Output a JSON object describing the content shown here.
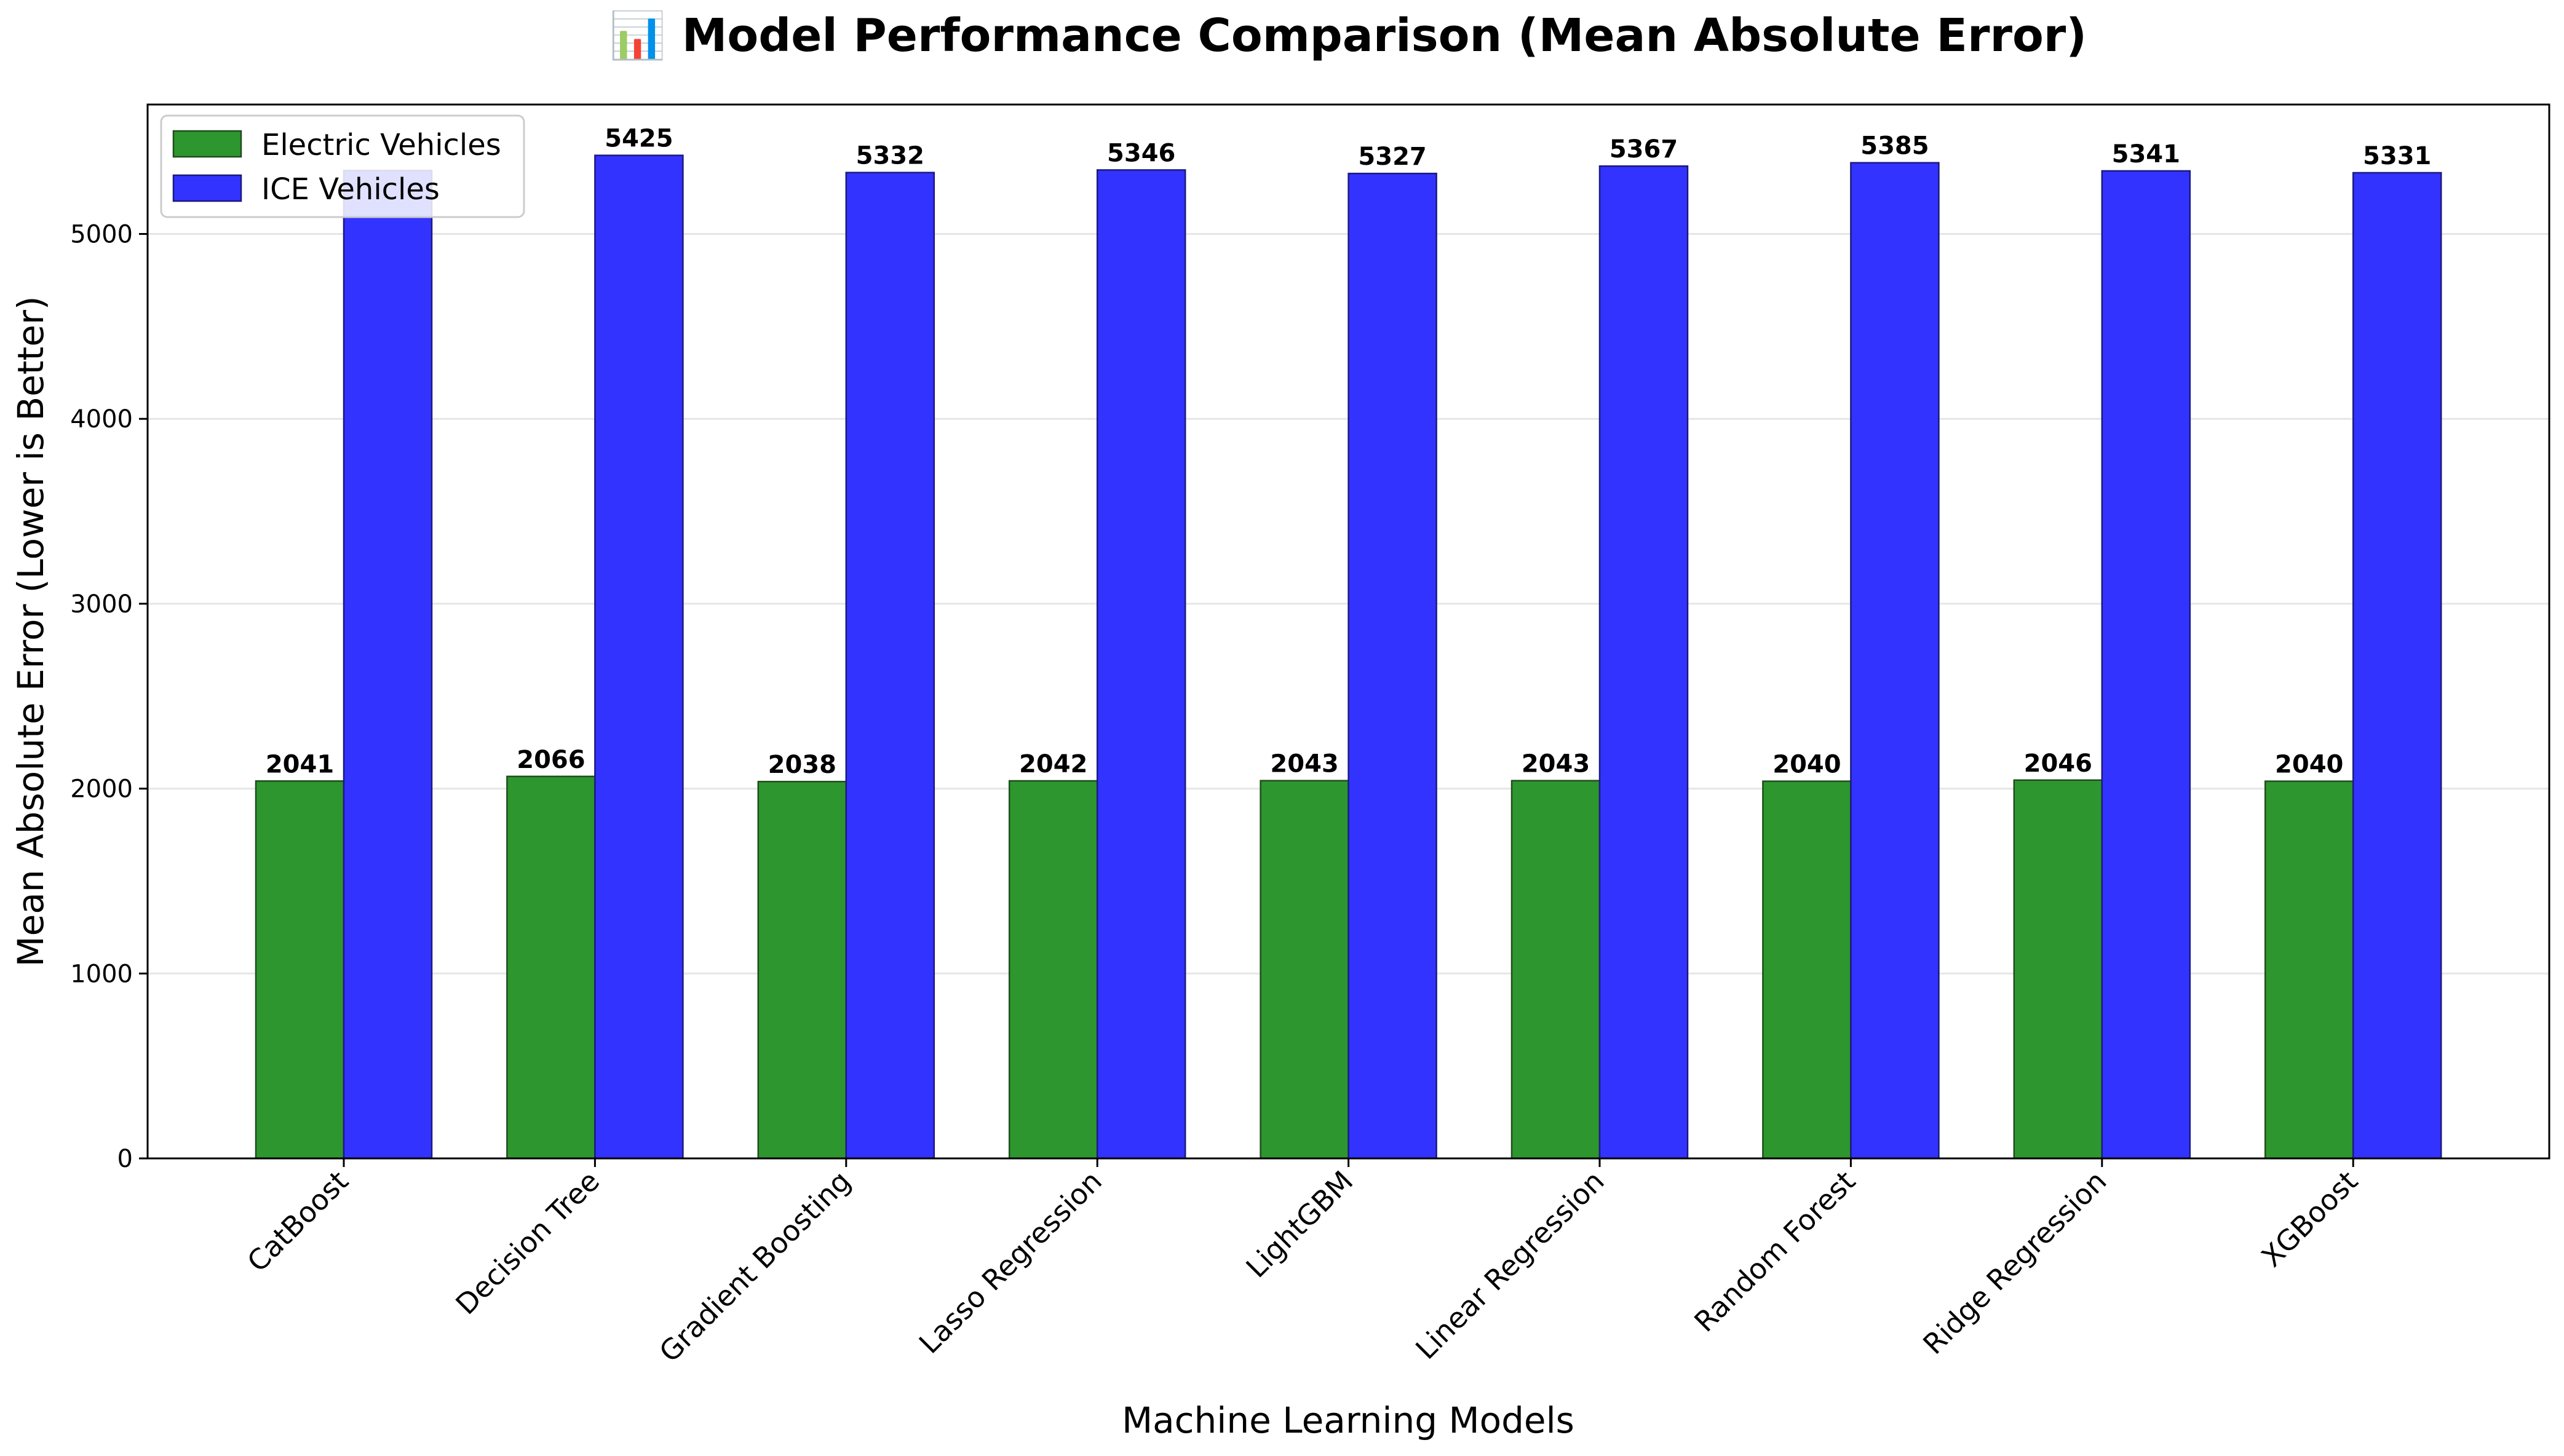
{
  "chart_data": {
    "type": "bar",
    "title": "📊 Model Performance Comparison (Mean Absolute Error)",
    "xlabel": "Machine Learning Models",
    "ylabel": "Mean Absolute Error (Lower is Better)",
    "categories": [
      "CatBoost",
      "Decision Tree",
      "Gradient Boosting",
      "Lasso Regression",
      "LightGBM",
      "Linear Regression",
      "Random Forest",
      "Ridge Regression",
      "XGBoost"
    ],
    "series": [
      {
        "name": "Electric Vehicles",
        "color": "#2e962e",
        "values": [
          2041,
          2066,
          2038,
          2042,
          2043,
          2043,
          2040,
          2046,
          2040
        ],
        "labels": [
          "2041",
          "2066",
          "2038",
          "2042",
          "2043",
          "2043",
          "2040",
          "2046",
          "2040"
        ]
      },
      {
        "name": "ICE Vehicles",
        "color": "#3333ff",
        "values": [
          5343,
          5425,
          5332,
          5346,
          5327,
          5367,
          5385,
          5341,
          5331
        ],
        "labels": [
          "",
          "5425",
          "5332",
          "5346",
          "5327",
          "5367",
          "5385",
          "5341",
          "5331"
        ]
      }
    ],
    "ylim": [
      0,
      5700
    ],
    "yticks": [
      0,
      1000,
      2000,
      3000,
      4000,
      5000
    ],
    "ytick_labels": [
      "0",
      "1000",
      "2000",
      "3000",
      "4000",
      "5000"
    ],
    "grid": "y",
    "legend_position": "top-left"
  }
}
